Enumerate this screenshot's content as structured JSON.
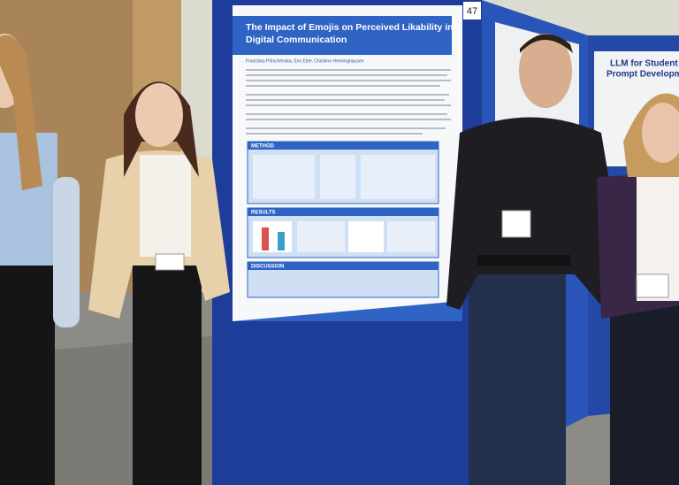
{
  "scene": {
    "poster": {
      "board_number": "47",
      "title_lines": [
        "The Impact of Emojis on Perceived Likability in",
        "Digital Communication"
      ],
      "authors": "Franziska Pötschenska, Eric Ebel, Christine Henninghausen",
      "sections": [
        "METHOD",
        "RESULTS",
        "DISCUSSION"
      ]
    },
    "right_poster": {
      "title_lines": [
        "LLM for Student",
        "Prompt Development, L"
      ]
    }
  }
}
